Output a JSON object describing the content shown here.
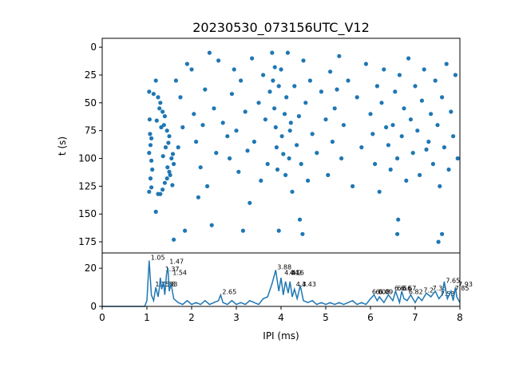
{
  "chart_data": [
    {
      "type": "scatter",
      "title": "20230530_073156UTC_V12",
      "ylabel": "t (s)",
      "xlim": [
        0,
        8
      ],
      "ylim": [
        185,
        -8
      ],
      "y_inverted": true,
      "yticks": [
        0,
        25,
        50,
        75,
        100,
        125,
        150,
        175
      ],
      "color": "#1f77b4",
      "points": [
        [
          1.05,
          40
        ],
        [
          1.06,
          65
        ],
        [
          1.07,
          78
        ],
        [
          1.08,
          88
        ],
        [
          1.05,
          95
        ],
        [
          1.1,
          102
        ],
        [
          1.12,
          110
        ],
        [
          1.08,
          118
        ],
        [
          1.1,
          126
        ],
        [
          1.05,
          130
        ],
        [
          1.15,
          42
        ],
        [
          1.2,
          30
        ],
        [
          1.25,
          45
        ],
        [
          1.3,
          50
        ],
        [
          1.28,
          55
        ],
        [
          1.35,
          58
        ],
        [
          1.4,
          62
        ],
        [
          1.38,
          70
        ],
        [
          1.45,
          75
        ],
        [
          1.5,
          80
        ],
        [
          1.22,
          66
        ],
        [
          1.32,
          72
        ],
        [
          1.42,
          90
        ],
        [
          1.36,
          98
        ],
        [
          1.46,
          108
        ],
        [
          1.5,
          112
        ],
        [
          1.45,
          118
        ],
        [
          1.4,
          122
        ],
        [
          1.35,
          128
        ],
        [
          1.3,
          132
        ],
        [
          1.55,
          100
        ],
        [
          1.6,
          105
        ],
        [
          1.52,
          115
        ],
        [
          1.57,
          124
        ],
        [
          1.2,
          148
        ],
        [
          1.6,
          173
        ],
        [
          1.65,
          30
        ],
        [
          1.7,
          90
        ],
        [
          1.75,
          45
        ],
        [
          1.8,
          72
        ],
        [
          1.9,
          15
        ],
        [
          2.0,
          20
        ],
        [
          2.05,
          60
        ],
        [
          2.1,
          85
        ],
        [
          2.2,
          108
        ],
        [
          2.25,
          70
        ],
        [
          2.3,
          38
        ],
        [
          2.35,
          125
        ],
        [
          2.4,
          5
        ],
        [
          2.5,
          55
        ],
        [
          2.55,
          95
        ],
        [
          2.6,
          12
        ],
        [
          2.7,
          68
        ],
        [
          2.8,
          80
        ],
        [
          2.85,
          100
        ],
        [
          2.9,
          42
        ],
        [
          2.95,
          20
        ],
        [
          3.0,
          75
        ],
        [
          3.05,
          112
        ],
        [
          3.1,
          30
        ],
        [
          3.2,
          58
        ],
        [
          3.25,
          93
        ],
        [
          3.3,
          140
        ],
        [
          3.35,
          10
        ],
        [
          3.4,
          85
        ],
        [
          3.5,
          50
        ],
        [
          3.55,
          120
        ],
        [
          3.6,
          25
        ],
        [
          3.65,
          65
        ],
        [
          3.7,
          105
        ],
        [
          3.75,
          40
        ],
        [
          3.8,
          5
        ],
        [
          3.82,
          30
        ],
        [
          3.85,
          55
        ],
        [
          3.88,
          72
        ],
        [
          3.9,
          90
        ],
        [
          3.92,
          110
        ],
        [
          3.95,
          35
        ],
        [
          4.0,
          20
        ],
        [
          4.02,
          80
        ],
        [
          4.05,
          96
        ],
        [
          4.08,
          60
        ],
        [
          4.1,
          115
        ],
        [
          4.12,
          45
        ],
        [
          4.15,
          5
        ],
        [
          4.18,
          100
        ],
        [
          4.2,
          75
        ],
        [
          4.25,
          130
        ],
        [
          4.3,
          35
        ],
        [
          4.35,
          88
        ],
        [
          4.4,
          62
        ],
        [
          4.45,
          105
        ],
        [
          4.5,
          12
        ],
        [
          4.55,
          50
        ],
        [
          4.6,
          120
        ],
        [
          4.65,
          30
        ],
        [
          4.7,
          78
        ],
        [
          4.8,
          95
        ],
        [
          4.9,
          40
        ],
        [
          5.0,
          65
        ],
        [
          5.05,
          115
        ],
        [
          5.1,
          22
        ],
        [
          5.15,
          85
        ],
        [
          5.2,
          55
        ],
        [
          5.3,
          8
        ],
        [
          5.35,
          100
        ],
        [
          5.4,
          70
        ],
        [
          5.5,
          30
        ],
        [
          5.6,
          125
        ],
        [
          5.7,
          45
        ],
        [
          5.8,
          90
        ],
        [
          5.9,
          15
        ],
        [
          6.0,
          60
        ],
        [
          6.05,
          78
        ],
        [
          6.1,
          105
        ],
        [
          6.15,
          35
        ],
        [
          6.2,
          130
        ],
        [
          6.25,
          50
        ],
        [
          6.3,
          20
        ],
        [
          6.4,
          88
        ],
        [
          6.45,
          110
        ],
        [
          6.5,
          70
        ],
        [
          6.55,
          40
        ],
        [
          6.6,
          100
        ],
        [
          6.65,
          25
        ],
        [
          6.7,
          80
        ],
        [
          6.75,
          55
        ],
        [
          6.8,
          120
        ],
        [
          6.85,
          10
        ],
        [
          6.9,
          65
        ],
        [
          6.95,
          95
        ],
        [
          7.0,
          35
        ],
        [
          7.05,
          75
        ],
        [
          7.1,
          115
        ],
        [
          7.15,
          48
        ],
        [
          7.2,
          20
        ],
        [
          7.3,
          85
        ],
        [
          7.35,
          60
        ],
        [
          7.4,
          105
        ],
        [
          7.45,
          30
        ],
        [
          7.5,
          70
        ],
        [
          7.55,
          125
        ],
        [
          7.6,
          45
        ],
        [
          7.65,
          90
        ],
        [
          7.7,
          15
        ],
        [
          7.75,
          110
        ],
        [
          7.8,
          58
        ],
        [
          7.85,
          80
        ],
        [
          7.9,
          25
        ],
        [
          7.95,
          100
        ],
        [
          1.1,
          82
        ],
        [
          1.48,
          86
        ],
        [
          3.86,
          18
        ],
        [
          4.22,
          68
        ],
        [
          5.25,
          38
        ],
        [
          6.35,
          72
        ],
        [
          7.25,
          92
        ],
        [
          2.15,
          135
        ],
        [
          6.62,
          155
        ],
        [
          7.52,
          175
        ],
        [
          3.95,
          165
        ],
        [
          4.42,
          155
        ],
        [
          4.48,
          168
        ],
        [
          2.45,
          160
        ],
        [
          3.15,
          165
        ],
        [
          1.85,
          165
        ],
        [
          6.6,
          168
        ],
        [
          7.6,
          168
        ],
        [
          1.25,
          132
        ],
        [
          1.58,
          96
        ]
      ]
    },
    {
      "type": "line",
      "xlabel": "IPI (ms)",
      "xlim": [
        0,
        8
      ],
      "ylim": [
        0,
        28
      ],
      "xticks": [
        0,
        1,
        2,
        3,
        4,
        5,
        6,
        7,
        8
      ],
      "yticks": [
        0,
        20
      ],
      "color": "#1f77b4",
      "x": [
        0,
        0.5,
        0.95,
        1.0,
        1.05,
        1.1,
        1.15,
        1.2,
        1.25,
        1.28,
        1.3,
        1.33,
        1.37,
        1.4,
        1.44,
        1.47,
        1.5,
        1.54,
        1.6,
        1.7,
        1.8,
        1.9,
        2.0,
        2.1,
        2.2,
        2.3,
        2.4,
        2.5,
        2.6,
        2.65,
        2.7,
        2.8,
        2.9,
        3.0,
        3.1,
        3.2,
        3.3,
        3.4,
        3.5,
        3.6,
        3.7,
        3.8,
        3.88,
        3.95,
        4.0,
        4.05,
        4.1,
        4.16,
        4.2,
        4.25,
        4.3,
        4.36,
        4.43,
        4.5,
        4.6,
        4.7,
        4.8,
        4.9,
        5.0,
        5.1,
        5.2,
        5.3,
        5.4,
        5.5,
        5.6,
        5.7,
        5.8,
        5.9,
        6.0,
        6.08,
        6.15,
        6.2,
        6.3,
        6.4,
        6.5,
        6.56,
        6.65,
        6.7,
        6.75,
        6.82,
        6.9,
        7.0,
        7.07,
        7.15,
        7.25,
        7.35,
        7.45,
        7.53,
        7.6,
        7.65,
        7.72,
        7.8,
        7.85,
        7.9,
        7.93,
        8.0
      ],
      "y": [
        0,
        0,
        0,
        3,
        24,
        6,
        3,
        10,
        5,
        10,
        15,
        9,
        13,
        6,
        17,
        20,
        8,
        12,
        4,
        2,
        1,
        3,
        1,
        2,
        1,
        3,
        1,
        2,
        3,
        6,
        2,
        1,
        3,
        1,
        2,
        1,
        3,
        2,
        1,
        4,
        5,
        12,
        19,
        8,
        15,
        6,
        13,
        7,
        13,
        5,
        9,
        4,
        11,
        3,
        2,
        3,
        1,
        2,
        1,
        2,
        1,
        2,
        1,
        2,
        3,
        1,
        2,
        1,
        4,
        6,
        3,
        5,
        2,
        6,
        3,
        8,
        2,
        8,
        4,
        3,
        6,
        2,
        5,
        3,
        7,
        5,
        8,
        4,
        6,
        13,
        4,
        8,
        3,
        10,
        5,
        2
      ],
      "annotations": [
        {
          "x": 1.05,
          "y": 24,
          "label": "1.05"
        },
        {
          "x": 1.47,
          "y": 22,
          "label": "1.47"
        },
        {
          "x": 1.37,
          "y": 18,
          "label": "1.37"
        },
        {
          "x": 1.54,
          "y": 16,
          "label": "1.54"
        },
        {
          "x": 1.15,
          "y": 10,
          "label": "1.15"
        },
        {
          "x": 1.28,
          "y": 10,
          "label": "1.28"
        },
        {
          "x": 1.33,
          "y": 10,
          "label": "1.33"
        },
        {
          "x": 2.65,
          "y": 6,
          "label": "2.65"
        },
        {
          "x": 3.88,
          "y": 19,
          "label": "3.88"
        },
        {
          "x": 4.04,
          "y": 16,
          "label": "4.04"
        },
        {
          "x": 4.16,
          "y": 16,
          "label": "4.16"
        },
        {
          "x": 4.2,
          "y": 16,
          "label": "4.2"
        },
        {
          "x": 4.3,
          "y": 10,
          "label": "4.3"
        },
        {
          "x": 4.43,
          "y": 10,
          "label": "4.43"
        },
        {
          "x": 6.0,
          "y": 6,
          "label": "6.0"
        },
        {
          "x": 6.08,
          "y": 6,
          "label": "6.08"
        },
        {
          "x": 6.15,
          "y": 6,
          "label": "6.09"
        },
        {
          "x": 6.5,
          "y": 8,
          "label": "6.6"
        },
        {
          "x": 6.56,
          "y": 8,
          "label": "6.56"
        },
        {
          "x": 6.67,
          "y": 8,
          "label": "6.67"
        },
        {
          "x": 6.82,
          "y": 6,
          "label": "6.82"
        },
        {
          "x": 7.15,
          "y": 7,
          "label": "7.2"
        },
        {
          "x": 7.35,
          "y": 8,
          "label": "7.35"
        },
        {
          "x": 7.53,
          "y": 5,
          "label": "7.53"
        },
        {
          "x": 7.65,
          "y": 12,
          "label": "7.65"
        },
        {
          "x": 7.93,
          "y": 10,
          "label": "7.93"
        },
        {
          "x": 7.85,
          "y": 8,
          "label": "7.85"
        }
      ]
    }
  ]
}
